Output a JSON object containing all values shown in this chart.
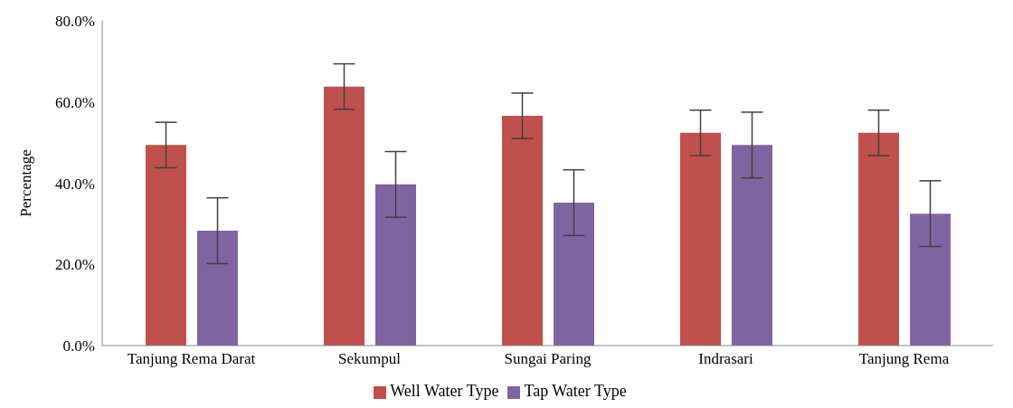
{
  "chart_data": {
    "type": "bar",
    "ylabel": "Percentage",
    "categories": [
      "Tanjung Rema Darat",
      "Sekumpul",
      "Sungai Paring",
      "Indrasari",
      "Tanjung Rema"
    ],
    "series": [
      {
        "name": "Well Water Type",
        "color": "#c0504d",
        "values": [
          49.4,
          63.8,
          56.6,
          52.4,
          52.4
        ],
        "errors": [
          5.6,
          5.6,
          5.6,
          5.6,
          5.6
        ]
      },
      {
        "name": "Tap Water Type",
        "color": "#8064a2",
        "values": [
          28.3,
          39.7,
          35.2,
          49.4,
          32.5
        ],
        "errors": [
          8.1,
          8.1,
          8.1,
          8.1,
          8.1
        ]
      }
    ],
    "ylim": [
      0,
      80
    ],
    "yticks": [
      {
        "value": 0,
        "label": "0.0%"
      },
      {
        "value": 20,
        "label": "20.0%"
      },
      {
        "value": 40,
        "label": "40.0%"
      },
      {
        "value": 60,
        "label": "60.0%"
      },
      {
        "value": 80,
        "label": "80.0%"
      }
    ],
    "grid": false,
    "legend": "bottom"
  }
}
